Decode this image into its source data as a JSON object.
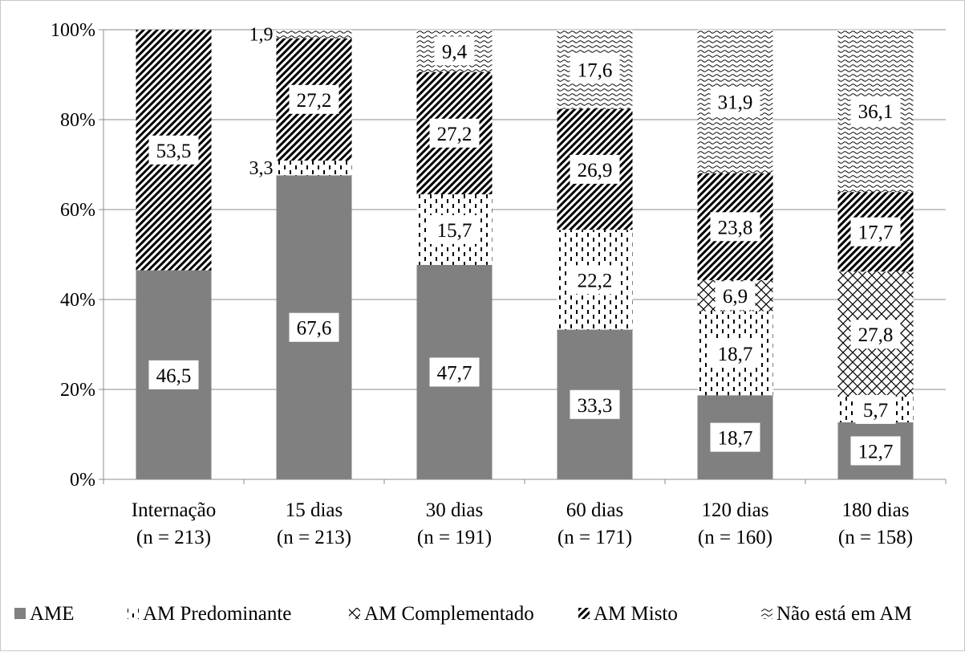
{
  "chart_data": {
    "type": "bar",
    "stacked": true,
    "percent": true,
    "categories": [
      {
        "line1": "Internação",
        "line2": "(n = 213)"
      },
      {
        "line1": "15 dias",
        "line2": "(n = 213)"
      },
      {
        "line1": "30 dias",
        "line2": "(n = 191)"
      },
      {
        "line1": "60 dias",
        "line2": "(n = 171)"
      },
      {
        "line1": "120 dias",
        "line2": "(n = 160)"
      },
      {
        "line1": "180 dias",
        "line2": "(n = 158)"
      }
    ],
    "series": [
      {
        "name": "AME",
        "pattern": "solid",
        "color": "#808080",
        "values": [
          46.5,
          67.6,
          47.7,
          33.3,
          18.7,
          12.7
        ],
        "labels": [
          "46,5",
          "67,6",
          "47,7",
          "33,3",
          "18,7",
          "12,7"
        ]
      },
      {
        "name": "AM Predominante",
        "pattern": "dashes",
        "color": "#000000",
        "values": [
          0,
          3.3,
          15.7,
          22.2,
          18.7,
          5.7
        ],
        "labels": [
          "",
          "3,3",
          "15,7",
          "22,2",
          "18,7",
          "5,7"
        ]
      },
      {
        "name": "AM Complementado",
        "pattern": "crosshatch",
        "color": "#000000",
        "values": [
          0,
          0,
          0,
          0,
          6.9,
          27.8
        ],
        "labels": [
          "",
          "",
          "",
          "",
          "6,9",
          "27,8"
        ]
      },
      {
        "name": "AM Misto",
        "pattern": "diagonal",
        "color": "#000000",
        "values": [
          53.5,
          27.2,
          27.2,
          26.9,
          23.8,
          17.7
        ],
        "labels": [
          "53,5",
          "27,2",
          "27,2",
          "26,9",
          "23,8",
          "17,7"
        ]
      },
      {
        "name": "Não está em AM",
        "pattern": "waves",
        "color": "#000000",
        "values": [
          0,
          1.9,
          9.4,
          17.6,
          31.9,
          36.1
        ],
        "labels": [
          "",
          "1,9",
          "9,4",
          "17,6",
          "31,9",
          "36,1"
        ]
      }
    ],
    "yticks": [
      "0%",
      "20%",
      "40%",
      "60%",
      "80%",
      "100%"
    ],
    "ylim": [
      0,
      100
    ],
    "grid": true,
    "legend_position": "bottom"
  }
}
